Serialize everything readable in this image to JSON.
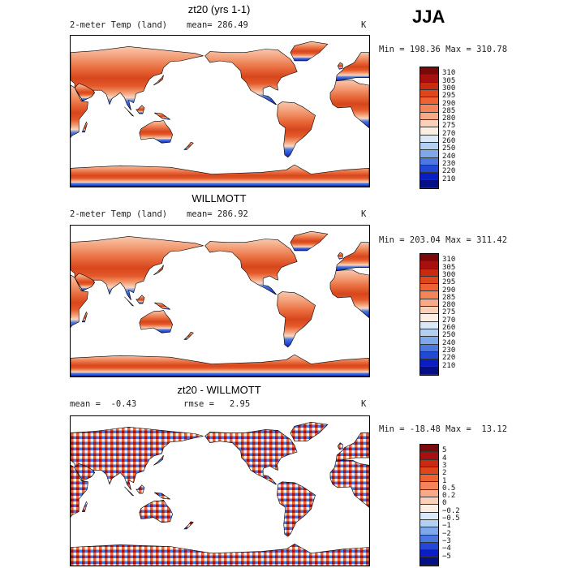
{
  "season": "JJA",
  "panels": [
    {
      "title": "zt20 (yrs 1-1)",
      "var_label": "2-meter Temp (land)",
      "stat": "mean= 286.49",
      "unit": "K",
      "range": "Min = 198.36 Max = 310.78",
      "levels": [
        "310",
        "305",
        "300",
        "295",
        "290",
        "285",
        "280",
        "275",
        "270",
        "260",
        "250",
        "240",
        "230",
        "220",
        "210"
      ],
      "map_type": "absolute"
    },
    {
      "title": "WILLMOTT",
      "var_label": "2-meter Temp (land)",
      "stat": "mean= 286.92",
      "unit": "K",
      "range": "Min = 203.04 Max = 311.42",
      "levels": [
        "310",
        "305",
        "300",
        "295",
        "290",
        "285",
        "280",
        "275",
        "270",
        "260",
        "250",
        "240",
        "230",
        "220",
        "210"
      ],
      "map_type": "absolute"
    },
    {
      "title": "zt20 - WILLMOTT",
      "var_label": "mean =  -0.43",
      "stat": "rmse =   2.95",
      "unit": "K",
      "range": "Min = -18.48 Max =  13.12",
      "levels": [
        "5",
        "4",
        "3",
        "2",
        "1",
        "0.5",
        "0.2",
        "0",
        "−0.2",
        "−0.5",
        "−1",
        "−2",
        "−3",
        "−4",
        "−5"
      ],
      "map_type": "difference"
    }
  ],
  "colors": {
    "absolute": [
      "#7a0a0a",
      "#a81010",
      "#c92a10",
      "#e0461c",
      "#ee6234",
      "#f4845a",
      "#f8aa88",
      "#fbd0b8",
      "#fdeee4",
      "#dbe8f8",
      "#b3cff2",
      "#7fa8ea",
      "#4a78e0",
      "#2348d4",
      "#0a1ec4",
      "#061086"
    ],
    "difference": [
      "#7a0a0a",
      "#a81010",
      "#c92a10",
      "#e0461c",
      "#ee6234",
      "#f4845a",
      "#f8aa88",
      "#fbd0b8",
      "#fdeee4",
      "#dbe8f8",
      "#b3cff2",
      "#7fa8ea",
      "#4a78e0",
      "#2348d4",
      "#0a1ec4",
      "#061086"
    ]
  }
}
